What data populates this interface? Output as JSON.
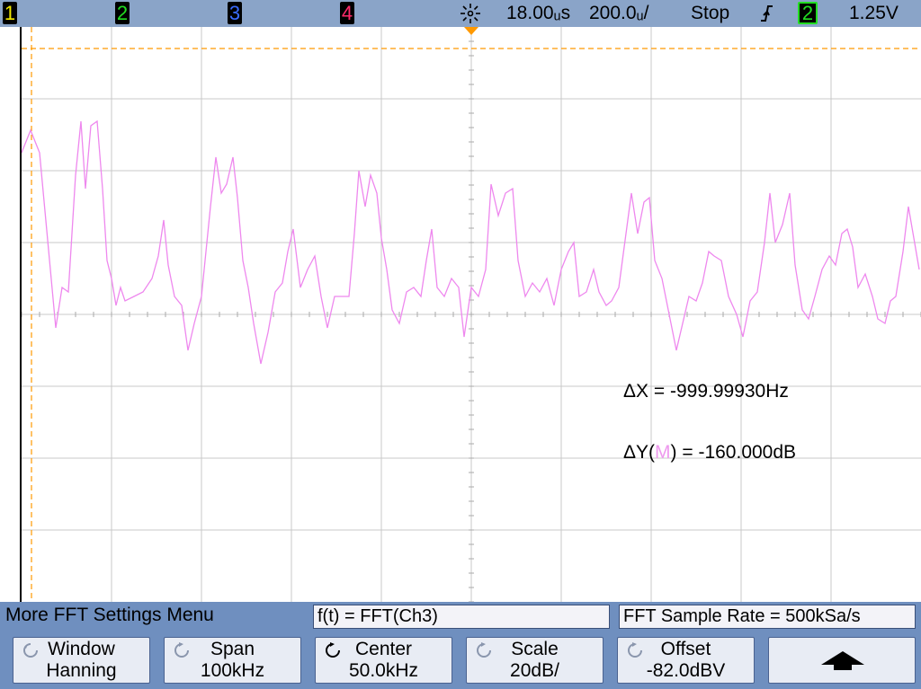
{
  "status_bar": {
    "channels": [
      {
        "label": "1",
        "color": "#f2e800"
      },
      {
        "label": "2",
        "color": "#22dd22"
      },
      {
        "label": "3",
        "color": "#3a6cff"
      },
      {
        "label": "4",
        "color": "#ff2a6a"
      }
    ],
    "delay": "18.00ᵤs",
    "timebase": "200.0ᵤ/",
    "run_state": "Stop",
    "trigger_source": "2",
    "trigger_level": "1.25V",
    "trigger_icon": "trigger-icon",
    "edge_icon": "rising-edge-icon"
  },
  "display": {
    "trace_color": "#ee88ee",
    "cursor_color": "#ff9900",
    "grid_color": "#c8c8c8",
    "delta_x": "ΔX = -999.99930Hz",
    "delta_y_prefix": "ΔY(",
    "delta_y_source": "M",
    "delta_y_suffix": ") = -160.000dB"
  },
  "menu": {
    "title": "More FFT Settings Menu",
    "function_text": "f(t) = FFT(Ch3)",
    "sample_rate_text": "FFT Sample Rate = 500kSa/s",
    "softkeys": [
      {
        "label": "Window",
        "value": "Hanning",
        "icon": "rotate-knob-icon"
      },
      {
        "label": "Span",
        "value": "100kHz",
        "icon": "rotate-knob-icon"
      },
      {
        "label": "Center",
        "value": "50.0kHz",
        "icon": "rotate-knob-icon"
      },
      {
        "label": "Scale",
        "value": "20dB/",
        "icon": "rotate-knob-icon"
      },
      {
        "label": "Offset",
        "value": "-82.0dBV",
        "icon": "rotate-knob-icon"
      },
      {
        "label": "",
        "value": "",
        "icon": "up-arrow-icon"
      }
    ]
  }
}
